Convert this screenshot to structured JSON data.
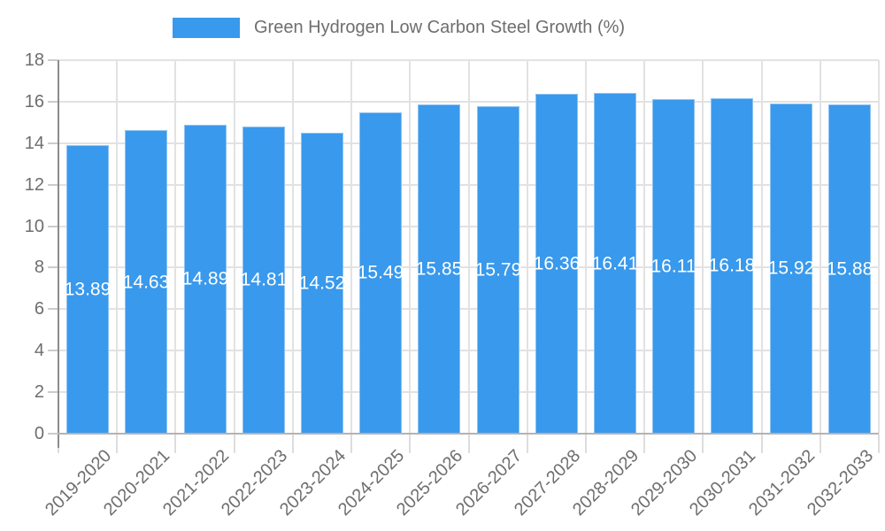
{
  "chart_data": {
    "type": "bar",
    "title": "Green Hydrogen Low Carbon Steel Growth (%)",
    "categories": [
      "2019-2020",
      "2020-2021",
      "2021-2022",
      "2022-2023",
      "2023-2024",
      "2024-2025",
      "2025-2026",
      "2026-2027",
      "2027-2028",
      "2028-2029",
      "2029-2030",
      "2030-2031",
      "2031-2032",
      "2032-2033"
    ],
    "values": [
      13.89,
      14.63,
      14.89,
      14.81,
      14.52,
      15.49,
      15.85,
      15.79,
      16.36,
      16.41,
      16.11,
      16.18,
      15.92,
      15.88
    ],
    "value_labels": [
      "13.89",
      "14.63",
      "14.89",
      "14.81",
      "14.52",
      "15.49",
      "15.85",
      "15.79",
      "16.36",
      "16.41",
      "16.11",
      "16.18",
      "15.92",
      "15.88"
    ],
    "xlabel": "",
    "ylabel": "",
    "ylim": [
      0,
      18
    ],
    "ytick_step": 2,
    "y_tick_labels": [
      "0",
      "2",
      "4",
      "6",
      "8",
      "10",
      "12",
      "14",
      "16",
      "18"
    ],
    "grid": true,
    "legend_position": "top",
    "colors": {
      "bar": "#3999EC",
      "bar_edge": "#8DC2F2",
      "value_label": "#FFFFFF",
      "axis_text": "#6E6E6E",
      "legend_text": "#6E6E6E",
      "gridline": "#E2E2E2",
      "y_axis_line": "#8C8C8C",
      "x_axis_line": "#B3B3B3",
      "y_tick_mark": "#CCCCCC",
      "x_tick_mark": "#DDDDDD",
      "background": "#FFFFFF"
    }
  }
}
